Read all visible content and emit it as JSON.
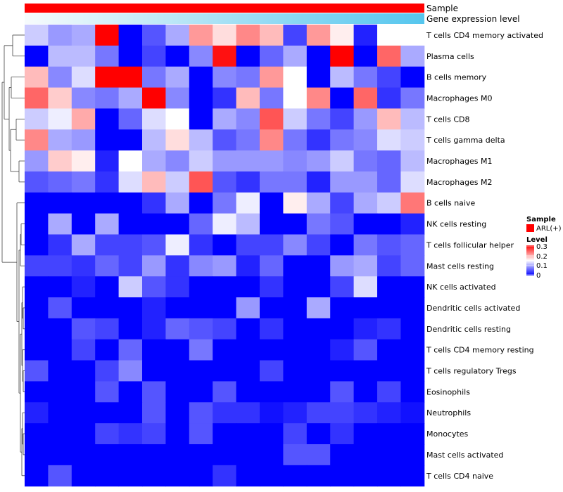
{
  "chart_data": {
    "type": "heatmap",
    "title": "",
    "annotations": {
      "top": {
        "label": "Sample",
        "color": "#ff0000"
      },
      "bottom": {
        "label": "Gene expression level",
        "gradient": [
          "#f7fbfc",
          "#55c6ee"
        ]
      }
    },
    "rows": [
      "T cells CD4 memory activated",
      "Plasma cells",
      "B cells memory",
      "Macrophages M0",
      "T cells CD8",
      "T cells gamma delta",
      "Macrophages M1",
      "Macrophages M2",
      "B cells naive",
      "NK cells resting",
      "T cells follicular helper",
      "Mast cells resting",
      "NK cells activated",
      "Dendritic cells activated",
      "Dendritic cells resting",
      "T cells CD4 memory resting",
      "T cells regulatory  Tregs",
      "Eosinophils",
      "Neutrophils",
      "Monocytes",
      "Mast cells activated",
      "T cells CD4 naive"
    ],
    "n_columns": 17,
    "values": [
      [
        0.12,
        0.09,
        0.1,
        0.3,
        0.0,
        0.05,
        0.1,
        0.21,
        0.17,
        0.22,
        0.19,
        0.04,
        0.21,
        0.16,
        0.02,
        0.15,
        0.15
      ],
      [
        0.0,
        0.11,
        0.11,
        0.07,
        0.0,
        0.04,
        0.0,
        0.08,
        0.29,
        0.0,
        0.06,
        0.1,
        0.0,
        0.3,
        0.0,
        0.24,
        0.1
      ],
      [
        0.19,
        0.08,
        0.13,
        0.3,
        0.3,
        0.07,
        0.1,
        0.0,
        0.08,
        0.07,
        0.21,
        0.15,
        0.0,
        0.11,
        0.07,
        0.04,
        0.0
      ],
      [
        0.24,
        0.18,
        0.08,
        0.07,
        0.1,
        0.3,
        0.08,
        0.0,
        0.03,
        0.19,
        0.07,
        0.15,
        0.22,
        0.0,
        0.24,
        0.03,
        0.07
      ],
      [
        0.12,
        0.14,
        0.2,
        0.0,
        0.06,
        0.13,
        0.15,
        0.0,
        0.1,
        0.08,
        0.25,
        0.12,
        0.07,
        0.04,
        0.09,
        0.19,
        0.11
      ],
      [
        0.22,
        0.1,
        0.09,
        0.0,
        0.0,
        0.11,
        0.17,
        0.11,
        0.05,
        0.07,
        0.22,
        0.07,
        0.03,
        0.07,
        0.08,
        0.13,
        0.12
      ],
      [
        0.09,
        0.18,
        0.16,
        0.02,
        0.15,
        0.1,
        0.08,
        0.12,
        0.09,
        0.09,
        0.09,
        0.08,
        0.09,
        0.12,
        0.07,
        0.06,
        0.11
      ],
      [
        0.05,
        0.06,
        0.07,
        0.03,
        0.13,
        0.19,
        0.12,
        0.25,
        0.05,
        0.03,
        0.07,
        0.07,
        0.02,
        0.09,
        0.09,
        0.06,
        0.13
      ],
      [
        0.0,
        0.0,
        0.0,
        0.0,
        0.0,
        0.03,
        0.1,
        0.0,
        0.07,
        0.14,
        0.0,
        0.16,
        0.1,
        0.04,
        0.1,
        0.12,
        0.23
      ],
      [
        0.0,
        0.1,
        0.0,
        0.1,
        0.0,
        0.0,
        0.0,
        0.06,
        0.14,
        0.11,
        0.0,
        0.0,
        0.07,
        0.05,
        0.0,
        0.0,
        0.02
      ],
      [
        0.0,
        0.03,
        0.1,
        0.04,
        0.04,
        0.05,
        0.14,
        0.03,
        0.0,
        0.04,
        0.04,
        0.08,
        0.04,
        0.0,
        0.07,
        0.05,
        0.06
      ],
      [
        0.04,
        0.04,
        0.03,
        0.06,
        0.04,
        0.09,
        0.03,
        0.08,
        0.09,
        0.02,
        0.06,
        0.0,
        0.0,
        0.09,
        0.1,
        0.04,
        0.06
      ],
      [
        0.0,
        0.0,
        0.02,
        0.0,
        0.12,
        0.05,
        0.03,
        0.0,
        0.0,
        0.0,
        0.03,
        0.0,
        0.0,
        0.04,
        0.13,
        0.0,
        0.0
      ],
      [
        0.0,
        0.05,
        0.0,
        0.0,
        0.0,
        0.02,
        0.0,
        0.0,
        0.0,
        0.09,
        0.0,
        0.0,
        0.1,
        0.0,
        0.0,
        0.0,
        0.0
      ],
      [
        0.0,
        0.0,
        0.05,
        0.04,
        0.0,
        0.02,
        0.06,
        0.05,
        0.04,
        0.0,
        0.03,
        0.0,
        0.0,
        0.0,
        0.02,
        0.03,
        0.0
      ],
      [
        0.0,
        0.0,
        0.04,
        0.0,
        0.06,
        0.0,
        0.0,
        0.07,
        0.0,
        0.0,
        0.0,
        0.0,
        0.0,
        0.02,
        0.05,
        0.0,
        0.0
      ],
      [
        0.05,
        0.0,
        0.0,
        0.04,
        0.08,
        0.0,
        0.0,
        0.0,
        0.0,
        0.0,
        0.04,
        0.0,
        0.0,
        0.0,
        0.0,
        0.0,
        0.0
      ],
      [
        0.0,
        0.0,
        0.0,
        0.05,
        0.0,
        0.05,
        0.0,
        0.0,
        0.05,
        0.0,
        0.0,
        0.0,
        0.0,
        0.05,
        0.0,
        0.04,
        0.0
      ],
      [
        0.02,
        0.0,
        0.0,
        0.0,
        0.0,
        0.05,
        0.0,
        0.05,
        0.03,
        0.03,
        0.01,
        0.02,
        0.04,
        0.04,
        0.03,
        0.02,
        0.01
      ],
      [
        0.0,
        0.0,
        0.0,
        0.04,
        0.03,
        0.04,
        0.0,
        0.05,
        0.0,
        0.0,
        0.0,
        0.04,
        0.0,
        0.03,
        0.0,
        0.0,
        0.0
      ],
      [
        0.0,
        0.0,
        0.0,
        0.0,
        0.0,
        0.0,
        0.0,
        0.0,
        0.0,
        0.0,
        0.0,
        0.05,
        0.05,
        0.0,
        0.0,
        0.0,
        0.0
      ],
      [
        0.0,
        0.05,
        0.0,
        0.0,
        0.0,
        0.0,
        0.0,
        0.0,
        0.03,
        0.0,
        0.0,
        0.0,
        0.0,
        0.0,
        0.0,
        0.0,
        0.0
      ]
    ],
    "color_scale": {
      "min": 0,
      "max": 0.3,
      "low": "#0000ff",
      "mid": "#ffffff",
      "high": "#ff0000"
    },
    "legends": [
      {
        "title": "Sample",
        "items": [
          {
            "label": "ARL(+)",
            "color": "#ff0000"
          }
        ]
      },
      {
        "title": "Level",
        "ticks": [
          "0.3",
          "0.2",
          "0.1",
          "0"
        ]
      }
    ],
    "row_dendrogram": true
  }
}
